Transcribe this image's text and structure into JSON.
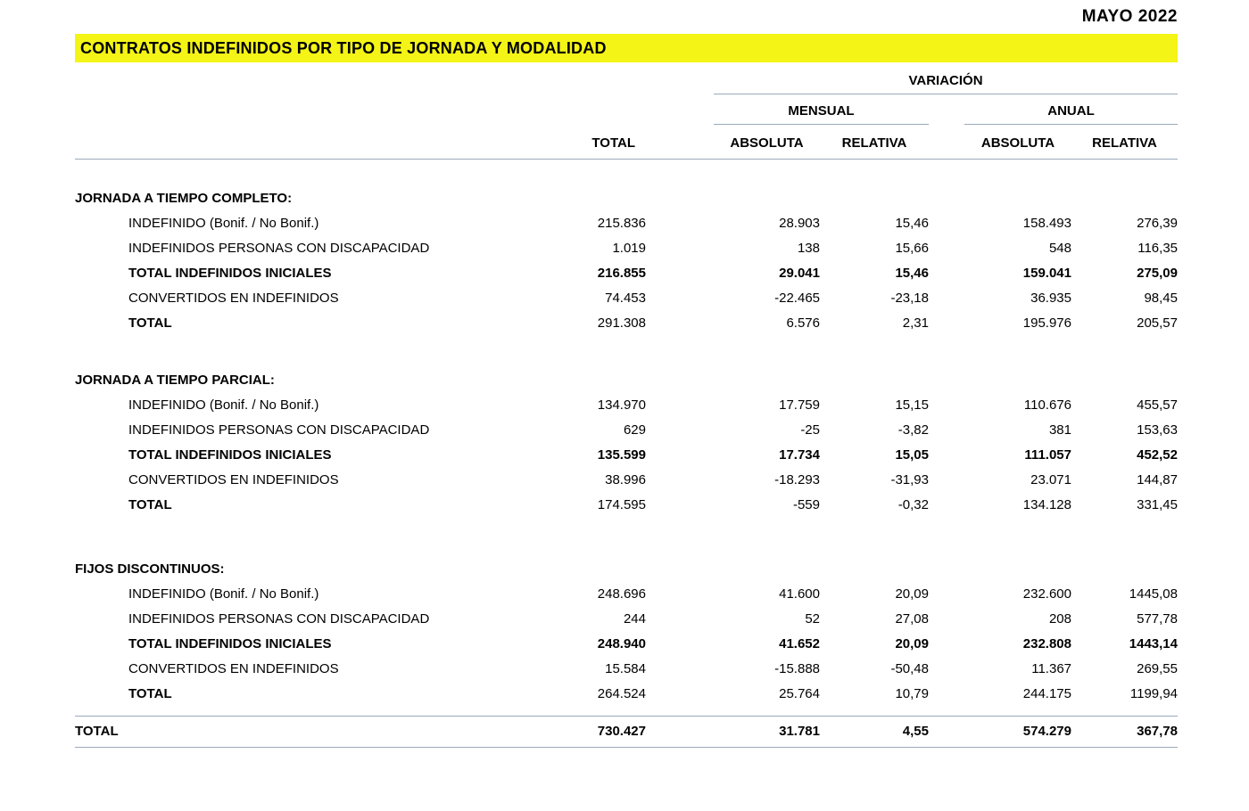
{
  "page": {
    "date": "MAYO 2022",
    "title": "CONTRATOS INDEFINIDOS POR TIPO DE JORNADA Y MODALIDAD"
  },
  "colors": {
    "highlight_yellow": "#f4f416",
    "rule_blue_gray": "#9aa9bb",
    "text": "#000000"
  },
  "table": {
    "col_headers": {
      "total": "TOTAL",
      "variacion": "VARIACIÓN",
      "mensual": "MENSUAL",
      "anual": "ANUAL",
      "mensual_absoluta": "ABSOLUTA",
      "mensual_relativa": "RELATIVA",
      "anual_absoluta": "ABSOLUTA",
      "anual_relativa": "RELATIVA"
    },
    "sections": [
      {
        "title": "JORNADA A TIEMPO COMPLETO:",
        "rows": [
          {
            "label": "INDEFINIDO (Bonif. / No Bonif.)",
            "label_bold": false,
            "values_bold": false,
            "values": [
              "215.836",
              "28.903",
              "15,46",
              "158.493",
              "276,39"
            ]
          },
          {
            "label": "INDEFINIDOS PERSONAS CON DISCAPACIDAD",
            "label_bold": false,
            "values_bold": false,
            "values": [
              "1.019",
              "138",
              "15,66",
              "548",
              "116,35"
            ]
          },
          {
            "label": "TOTAL INDEFINIDOS INICIALES",
            "label_bold": true,
            "values_bold": true,
            "values": [
              "216.855",
              "29.041",
              "15,46",
              "159.041",
              "275,09"
            ]
          },
          {
            "label": "CONVERTIDOS EN INDEFINIDOS",
            "label_bold": false,
            "values_bold": false,
            "values": [
              "74.453",
              "-22.465",
              "-23,18",
              "36.935",
              "98,45"
            ]
          },
          {
            "label": "TOTAL",
            "label_bold": true,
            "values_bold": false,
            "values": [
              "291.308",
              "6.576",
              "2,31",
              "195.976",
              "205,57"
            ]
          }
        ]
      },
      {
        "title": "JORNADA A TIEMPO PARCIAL:",
        "rows": [
          {
            "label": "INDEFINIDO (Bonif. / No Bonif.)",
            "label_bold": false,
            "values_bold": false,
            "values": [
              "134.970",
              "17.759",
              "15,15",
              "110.676",
              "455,57"
            ]
          },
          {
            "label": "INDEFINIDOS PERSONAS CON DISCAPACIDAD",
            "label_bold": false,
            "values_bold": false,
            "values": [
              "629",
              "-25",
              "-3,82",
              "381",
              "153,63"
            ]
          },
          {
            "label": "TOTAL INDEFINIDOS INICIALES",
            "label_bold": true,
            "values_bold": true,
            "values": [
              "135.599",
              "17.734",
              "15,05",
              "111.057",
              "452,52"
            ]
          },
          {
            "label": "CONVERTIDOS EN INDEFINIDOS",
            "label_bold": false,
            "values_bold": false,
            "values": [
              "38.996",
              "-18.293",
              "-31,93",
              "23.071",
              "144,87"
            ]
          },
          {
            "label": "TOTAL",
            "label_bold": true,
            "values_bold": false,
            "values": [
              "174.595",
              "-559",
              "-0,32",
              "134.128",
              "331,45"
            ]
          }
        ]
      },
      {
        "title": "FIJOS DISCONTINUOS:",
        "rows": [
          {
            "label": "INDEFINIDO (Bonif. / No Bonif.)",
            "label_bold": false,
            "values_bold": false,
            "values": [
              "248.696",
              "41.600",
              "20,09",
              "232.600",
              "1445,08"
            ]
          },
          {
            "label": "INDEFINIDOS PERSONAS CON DISCAPACIDAD",
            "label_bold": false,
            "values_bold": false,
            "values": [
              "244",
              "52",
              "27,08",
              "208",
              "577,78"
            ]
          },
          {
            "label": "TOTAL INDEFINIDOS INICIALES",
            "label_bold": true,
            "values_bold": true,
            "values": [
              "248.940",
              "41.652",
              "20,09",
              "232.808",
              "1443,14"
            ]
          },
          {
            "label": "CONVERTIDOS EN INDEFINIDOS",
            "label_bold": false,
            "values_bold": false,
            "values": [
              "15.584",
              "-15.888",
              "-50,48",
              "11.367",
              "269,55"
            ]
          },
          {
            "label": "TOTAL",
            "label_bold": true,
            "values_bold": false,
            "values": [
              "264.524",
              "25.764",
              "10,79",
              "244.175",
              "1199,94"
            ]
          }
        ]
      }
    ],
    "grand_total": {
      "label": "TOTAL",
      "values": [
        "730.427",
        "31.781",
        "4,55",
        "574.279",
        "367,78"
      ]
    }
  }
}
